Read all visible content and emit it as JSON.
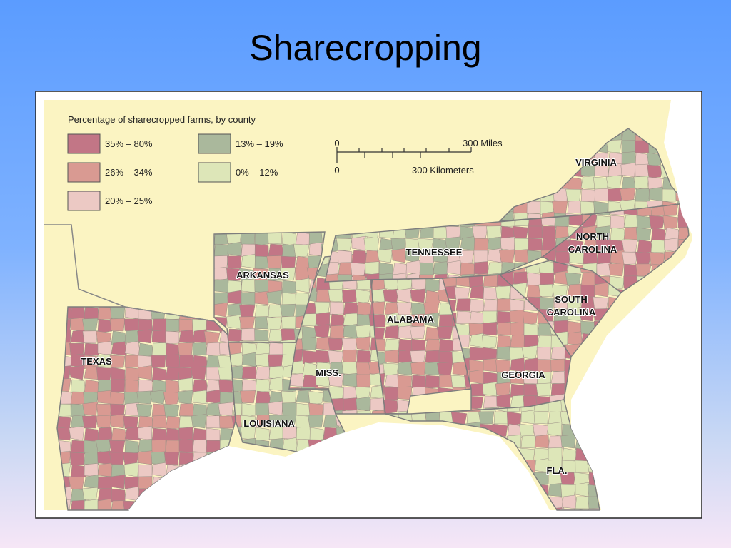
{
  "title": "Sharecropping",
  "map": {
    "legend": {
      "title": "Percentage of sharecropped farms, by county",
      "items": [
        {
          "label": "35% – 80%",
          "color": "#c27686"
        },
        {
          "label": "26% – 34%",
          "color": "#d99a92"
        },
        {
          "label": "20% – 25%",
          "color": "#ecc9c4"
        },
        {
          "label": "13% – 19%",
          "color": "#aab89c"
        },
        {
          "label": "0% – 12%",
          "color": "#dde6b8"
        }
      ]
    },
    "scale": {
      "miles": {
        "start": "0",
        "end": "300 Miles"
      },
      "kilometers": {
        "start": "0",
        "end": "300 Kilometers"
      }
    },
    "states": [
      {
        "lines": [
          "VIRGINIA"
        ]
      },
      {
        "lines": [
          "NORTH",
          "CAROLINA"
        ]
      },
      {
        "lines": [
          "TENNESSEE"
        ]
      },
      {
        "lines": [
          "ARKANSAS"
        ]
      },
      {
        "lines": [
          "SOUTH",
          "CAROLINA"
        ]
      },
      {
        "lines": [
          "ALABAMA"
        ]
      },
      {
        "lines": [
          "TEXAS"
        ]
      },
      {
        "lines": [
          "MISS."
        ]
      },
      {
        "lines": [
          "GEORGIA"
        ]
      },
      {
        "lines": [
          "LOUISIANA"
        ]
      },
      {
        "lines": [
          "FLA."
        ]
      }
    ]
  }
}
